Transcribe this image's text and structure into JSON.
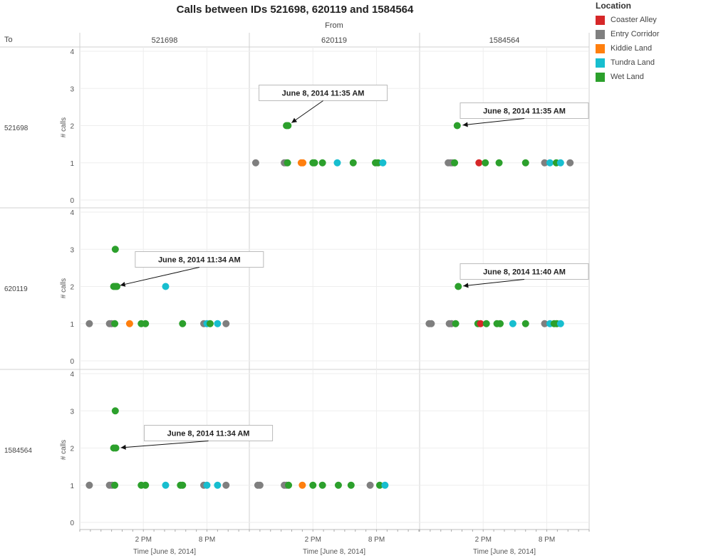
{
  "chart_data": {
    "type": "scatter",
    "title": "Calls between IDs 521698, 620119 and 1584564",
    "column_header": "From",
    "row_header": "To",
    "columns": [
      "521698",
      "620119",
      "1584564"
    ],
    "rows": [
      "521698",
      "620119",
      "1584564"
    ],
    "ylabel": "# calls",
    "xlabel": "Time [June 8, 2014]",
    "ylim": [
      0,
      4
    ],
    "yticks": [
      0,
      1,
      2,
      3,
      4
    ],
    "xlim": [
      8,
      24
    ],
    "xticks": [
      {
        "value": 14,
        "label": "2 PM"
      },
      {
        "value": 20,
        "label": "8 PM"
      }
    ],
    "grid": true,
    "legend": {
      "title": "Location",
      "placement": "top-right",
      "items": [
        {
          "name": "Coaster Alley",
          "color": "#d62728"
        },
        {
          "name": "Entry Corridor",
          "color": "#7f7f7f"
        },
        {
          "name": "Kiddie Land",
          "color": "#ff7f0e"
        },
        {
          "name": "Tundra Land",
          "color": "#17becf"
        },
        {
          "name": "Wet Land",
          "color": "#2ca02c"
        }
      ]
    },
    "panels": [
      {
        "row": "521698",
        "col": "521698",
        "points": []
      },
      {
        "row": "521698",
        "col": "620119",
        "annotation": {
          "text": "June 8, 2014 11:35 AM",
          "x": 11.6,
          "y": 2
        },
        "points": [
          {
            "x": 8.6,
            "y": 1,
            "loc": "Entry Corridor"
          },
          {
            "x": 11.3,
            "y": 1,
            "loc": "Entry Corridor"
          },
          {
            "x": 11.45,
            "y": 1,
            "loc": "Entry Corridor"
          },
          {
            "x": 11.6,
            "y": 1,
            "loc": "Wet Land"
          },
          {
            "x": 11.5,
            "y": 2,
            "loc": "Wet Land"
          },
          {
            "x": 11.65,
            "y": 2,
            "loc": "Wet Land"
          },
          {
            "x": 12.9,
            "y": 1,
            "loc": "Kiddie Land"
          },
          {
            "x": 13.05,
            "y": 1,
            "loc": "Kiddie Land"
          },
          {
            "x": 14.0,
            "y": 1,
            "loc": "Wet Land"
          },
          {
            "x": 14.15,
            "y": 1,
            "loc": "Wet Land"
          },
          {
            "x": 14.9,
            "y": 1,
            "loc": "Wet Land"
          },
          {
            "x": 16.3,
            "y": 1,
            "loc": "Tundra Land"
          },
          {
            "x": 17.8,
            "y": 1,
            "loc": "Wet Land"
          },
          {
            "x": 19.9,
            "y": 1,
            "loc": "Wet Land"
          },
          {
            "x": 20.15,
            "y": 1,
            "loc": "Wet Land"
          },
          {
            "x": 20.6,
            "y": 1,
            "loc": "Tundra Land"
          }
        ]
      },
      {
        "row": "521698",
        "col": "1584564",
        "annotation": {
          "text": "June 8, 2014 11:35 AM",
          "x": 11.6,
          "y": 2
        },
        "points": [
          {
            "x": 10.7,
            "y": 1,
            "loc": "Entry Corridor"
          },
          {
            "x": 10.9,
            "y": 1,
            "loc": "Entry Corridor"
          },
          {
            "x": 11.05,
            "y": 1,
            "loc": "Entry Corridor"
          },
          {
            "x": 11.3,
            "y": 1,
            "loc": "Wet Land"
          },
          {
            "x": 11.55,
            "y": 2,
            "loc": "Wet Land"
          },
          {
            "x": 13.6,
            "y": 1,
            "loc": "Coaster Alley"
          },
          {
            "x": 14.2,
            "y": 1,
            "loc": "Wet Land"
          },
          {
            "x": 15.5,
            "y": 1,
            "loc": "Wet Land"
          },
          {
            "x": 18.0,
            "y": 1,
            "loc": "Wet Land"
          },
          {
            "x": 19.8,
            "y": 1,
            "loc": "Entry Corridor"
          },
          {
            "x": 20.3,
            "y": 1,
            "loc": "Tundra Land"
          },
          {
            "x": 20.9,
            "y": 1,
            "loc": "Wet Land"
          },
          {
            "x": 21.3,
            "y": 1,
            "loc": "Tundra Land"
          },
          {
            "x": 22.2,
            "y": 1,
            "loc": "Entry Corridor"
          }
        ]
      },
      {
        "row": "620119",
        "col": "521698",
        "annotation": {
          "text": "June 8, 2014 11:34 AM",
          "x": 11.35,
          "y": 2
        },
        "points": [
          {
            "x": 8.9,
            "y": 1,
            "loc": "Entry Corridor"
          },
          {
            "x": 10.8,
            "y": 1,
            "loc": "Entry Corridor"
          },
          {
            "x": 11.0,
            "y": 1,
            "loc": "Entry Corridor"
          },
          {
            "x": 11.3,
            "y": 1,
            "loc": "Wet Land"
          },
          {
            "x": 11.2,
            "y": 2,
            "loc": "Wet Land"
          },
          {
            "x": 11.35,
            "y": 2,
            "loc": "Wet Land"
          },
          {
            "x": 11.5,
            "y": 2,
            "loc": "Wet Land"
          },
          {
            "x": 11.35,
            "y": 3,
            "loc": "Wet Land"
          },
          {
            "x": 12.7,
            "y": 1,
            "loc": "Kiddie Land"
          },
          {
            "x": 13.8,
            "y": 1,
            "loc": "Wet Land"
          },
          {
            "x": 14.2,
            "y": 1,
            "loc": "Wet Land"
          },
          {
            "x": 16.1,
            "y": 2,
            "loc": "Tundra Land"
          },
          {
            "x": 17.7,
            "y": 1,
            "loc": "Wet Land"
          },
          {
            "x": 19.7,
            "y": 1,
            "loc": "Entry Corridor"
          },
          {
            "x": 20.0,
            "y": 1,
            "loc": "Tundra Land"
          },
          {
            "x": 20.3,
            "y": 1,
            "loc": "Wet Land"
          },
          {
            "x": 21.0,
            "y": 1,
            "loc": "Tundra Land"
          },
          {
            "x": 21.8,
            "y": 1,
            "loc": "Entry Corridor"
          }
        ]
      },
      {
        "row": "620119",
        "col": "620119",
        "points": []
      },
      {
        "row": "620119",
        "col": "1584564",
        "annotation": {
          "text": "June 8, 2014 11:40 AM",
          "x": 11.65,
          "y": 2
        },
        "points": [
          {
            "x": 8.9,
            "y": 1,
            "loc": "Entry Corridor"
          },
          {
            "x": 9.1,
            "y": 1,
            "loc": "Entry Corridor"
          },
          {
            "x": 10.8,
            "y": 1,
            "loc": "Entry Corridor"
          },
          {
            "x": 11.0,
            "y": 1,
            "loc": "Entry Corridor"
          },
          {
            "x": 11.4,
            "y": 1,
            "loc": "Wet Land"
          },
          {
            "x": 11.65,
            "y": 2,
            "loc": "Wet Land"
          },
          {
            "x": 13.5,
            "y": 1,
            "loc": "Wet Land"
          },
          {
            "x": 13.75,
            "y": 1,
            "loc": "Coaster Alley"
          },
          {
            "x": 14.3,
            "y": 1,
            "loc": "Wet Land"
          },
          {
            "x": 15.3,
            "y": 1,
            "loc": "Wet Land"
          },
          {
            "x": 15.6,
            "y": 1,
            "loc": "Wet Land"
          },
          {
            "x": 16.8,
            "y": 1,
            "loc": "Tundra Land"
          },
          {
            "x": 18.0,
            "y": 1,
            "loc": "Wet Land"
          },
          {
            "x": 19.8,
            "y": 1,
            "loc": "Entry Corridor"
          },
          {
            "x": 20.3,
            "y": 1,
            "loc": "Tundra Land"
          },
          {
            "x": 20.7,
            "y": 1,
            "loc": "Wet Land"
          },
          {
            "x": 20.95,
            "y": 1,
            "loc": "Wet Land"
          },
          {
            "x": 21.3,
            "y": 1,
            "loc": "Tundra Land"
          }
        ]
      },
      {
        "row": "1584564",
        "col": "521698",
        "annotation": {
          "text": "June 8, 2014 11:34 AM",
          "x": 11.4,
          "y": 2
        },
        "points": [
          {
            "x": 8.9,
            "y": 1,
            "loc": "Entry Corridor"
          },
          {
            "x": 10.8,
            "y": 1,
            "loc": "Entry Corridor"
          },
          {
            "x": 11.05,
            "y": 1,
            "loc": "Entry Corridor"
          },
          {
            "x": 11.3,
            "y": 1,
            "loc": "Wet Land"
          },
          {
            "x": 11.2,
            "y": 2,
            "loc": "Wet Land"
          },
          {
            "x": 11.4,
            "y": 2,
            "loc": "Wet Land"
          },
          {
            "x": 11.35,
            "y": 3,
            "loc": "Wet Land"
          },
          {
            "x": 13.8,
            "y": 1,
            "loc": "Wet Land"
          },
          {
            "x": 14.2,
            "y": 1,
            "loc": "Wet Land"
          },
          {
            "x": 16.1,
            "y": 1,
            "loc": "Tundra Land"
          },
          {
            "x": 17.5,
            "y": 1,
            "loc": "Wet Land"
          },
          {
            "x": 17.7,
            "y": 1,
            "loc": "Wet Land"
          },
          {
            "x": 19.7,
            "y": 1,
            "loc": "Entry Corridor"
          },
          {
            "x": 20.0,
            "y": 1,
            "loc": "Tundra Land"
          },
          {
            "x": 21.0,
            "y": 1,
            "loc": "Tundra Land"
          },
          {
            "x": 21.8,
            "y": 1,
            "loc": "Entry Corridor"
          }
        ]
      },
      {
        "row": "1584564",
        "col": "620119",
        "points": [
          {
            "x": 8.8,
            "y": 1,
            "loc": "Entry Corridor"
          },
          {
            "x": 9.0,
            "y": 1,
            "loc": "Entry Corridor"
          },
          {
            "x": 11.3,
            "y": 1,
            "loc": "Entry Corridor"
          },
          {
            "x": 11.5,
            "y": 1,
            "loc": "Entry Corridor"
          },
          {
            "x": 11.7,
            "y": 1,
            "loc": "Wet Land"
          },
          {
            "x": 13.0,
            "y": 1,
            "loc": "Kiddie Land"
          },
          {
            "x": 14.0,
            "y": 1,
            "loc": "Wet Land"
          },
          {
            "x": 14.9,
            "y": 1,
            "loc": "Wet Land"
          },
          {
            "x": 16.4,
            "y": 1,
            "loc": "Wet Land"
          },
          {
            "x": 17.6,
            "y": 1,
            "loc": "Wet Land"
          },
          {
            "x": 19.4,
            "y": 1,
            "loc": "Entry Corridor"
          },
          {
            "x": 20.3,
            "y": 1,
            "loc": "Wet Land"
          },
          {
            "x": 20.8,
            "y": 1,
            "loc": "Tundra Land"
          }
        ]
      },
      {
        "row": "1584564",
        "col": "1584564",
        "points": []
      }
    ]
  }
}
